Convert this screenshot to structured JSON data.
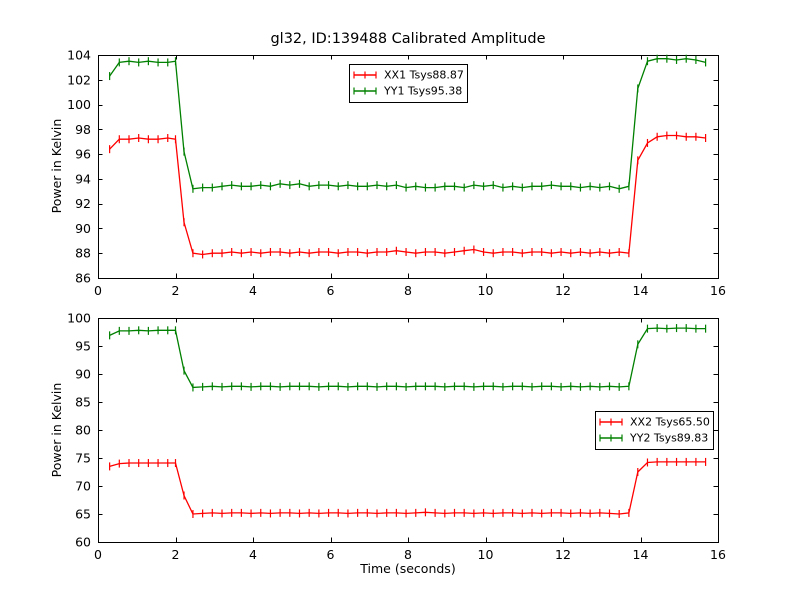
{
  "title": "gl32, ID:139488 Calibrated Amplitude",
  "colors": {
    "red_series": "#ff0000",
    "green_series": "#008000",
    "axis": "#000000",
    "background": "#ffffff"
  },
  "chart_data": [
    {
      "type": "line",
      "ylabel": "Power in Kelvin",
      "xlabel": "",
      "xlim": [
        0,
        16
      ],
      "ylim": [
        86,
        104
      ],
      "xticks": [
        0,
        2,
        4,
        6,
        8,
        10,
        12,
        14,
        16
      ],
      "yticks": [
        86,
        88,
        90,
        92,
        94,
        96,
        98,
        100,
        102,
        104
      ],
      "grid": false,
      "legend_position": "top-center",
      "marker": "errorbar-plus",
      "x": [
        0.3,
        0.55,
        0.8,
        1.05,
        1.3,
        1.55,
        1.8,
        2.0,
        2.22,
        2.45,
        2.7,
        2.95,
        3.2,
        3.45,
        3.7,
        3.95,
        4.2,
        4.45,
        4.7,
        4.95,
        5.2,
        5.45,
        5.7,
        5.95,
        6.2,
        6.45,
        6.7,
        6.95,
        7.2,
        7.45,
        7.7,
        7.95,
        8.2,
        8.45,
        8.7,
        8.95,
        9.2,
        9.45,
        9.7,
        9.95,
        10.2,
        10.45,
        10.7,
        10.95,
        11.2,
        11.45,
        11.7,
        11.95,
        12.2,
        12.45,
        12.7,
        12.95,
        13.2,
        13.45,
        13.7,
        13.93,
        14.18,
        14.43,
        14.68,
        14.93,
        15.18,
        15.43,
        15.68
      ],
      "series": [
        {
          "name": "XX1 Tsys88.87",
          "color": "#ff0000",
          "values": [
            96.4,
            97.2,
            97.2,
            97.3,
            97.2,
            97.2,
            97.3,
            97.2,
            90.5,
            88.0,
            87.9,
            88.0,
            88.0,
            88.1,
            88.0,
            88.1,
            88.0,
            88.1,
            88.1,
            88.0,
            88.1,
            88.0,
            88.1,
            88.1,
            88.0,
            88.1,
            88.1,
            88.0,
            88.1,
            88.1,
            88.2,
            88.1,
            88.0,
            88.1,
            88.1,
            88.0,
            88.1,
            88.2,
            88.3,
            88.1,
            88.0,
            88.1,
            88.1,
            88.0,
            88.1,
            88.1,
            88.0,
            88.1,
            88.0,
            88.1,
            88.0,
            88.1,
            88.0,
            88.1,
            88.0,
            95.5,
            96.9,
            97.4,
            97.5,
            97.5,
            97.4,
            97.4,
            97.3
          ]
        },
        {
          "name": "YY1 Tsys95.38",
          "color": "#008000",
          "values": [
            102.3,
            103.4,
            103.5,
            103.4,
            103.5,
            103.4,
            103.4,
            103.5,
            96.2,
            93.2,
            93.3,
            93.3,
            93.4,
            93.5,
            93.4,
            93.4,
            93.5,
            93.4,
            93.6,
            93.5,
            93.6,
            93.4,
            93.5,
            93.5,
            93.4,
            93.5,
            93.4,
            93.4,
            93.5,
            93.4,
            93.5,
            93.3,
            93.4,
            93.3,
            93.3,
            93.4,
            93.4,
            93.3,
            93.5,
            93.4,
            93.5,
            93.3,
            93.4,
            93.3,
            93.4,
            93.4,
            93.5,
            93.4,
            93.4,
            93.3,
            93.4,
            93.3,
            93.4,
            93.2,
            93.4,
            101.3,
            103.5,
            103.7,
            103.7,
            103.6,
            103.7,
            103.6,
            103.4
          ]
        }
      ]
    },
    {
      "type": "line",
      "ylabel": "Power in Kelvin",
      "xlabel": "Time (seconds)",
      "xlim": [
        0,
        16
      ],
      "ylim": [
        60,
        100
      ],
      "xticks": [
        0,
        2,
        4,
        6,
        8,
        10,
        12,
        14,
        16
      ],
      "yticks": [
        60,
        65,
        70,
        75,
        80,
        85,
        90,
        95,
        100
      ],
      "grid": false,
      "legend_position": "right-center",
      "marker": "errorbar-plus",
      "x": [
        0.3,
        0.55,
        0.8,
        1.05,
        1.3,
        1.55,
        1.8,
        2.0,
        2.22,
        2.45,
        2.7,
        2.95,
        3.2,
        3.45,
        3.7,
        3.95,
        4.2,
        4.45,
        4.7,
        4.95,
        5.2,
        5.45,
        5.7,
        5.95,
        6.2,
        6.45,
        6.7,
        6.95,
        7.2,
        7.45,
        7.7,
        7.95,
        8.2,
        8.45,
        8.7,
        8.95,
        9.2,
        9.45,
        9.7,
        9.95,
        10.2,
        10.45,
        10.7,
        10.95,
        11.2,
        11.45,
        11.7,
        11.95,
        12.2,
        12.45,
        12.7,
        12.95,
        13.2,
        13.45,
        13.7,
        13.93,
        14.18,
        14.43,
        14.68,
        14.93,
        15.18,
        15.43,
        15.68
      ],
      "series": [
        {
          "name": "XX2 Tsys65.50",
          "color": "#ff0000",
          "values": [
            73.5,
            74.0,
            74.1,
            74.1,
            74.1,
            74.1,
            74.1,
            74.1,
            68.3,
            65.0,
            65.1,
            65.2,
            65.1,
            65.2,
            65.2,
            65.1,
            65.2,
            65.1,
            65.2,
            65.2,
            65.1,
            65.2,
            65.1,
            65.2,
            65.2,
            65.1,
            65.2,
            65.2,
            65.1,
            65.2,
            65.2,
            65.1,
            65.2,
            65.3,
            65.2,
            65.1,
            65.2,
            65.2,
            65.1,
            65.2,
            65.1,
            65.2,
            65.2,
            65.1,
            65.2,
            65.1,
            65.2,
            65.2,
            65.1,
            65.2,
            65.1,
            65.2,
            65.1,
            65.0,
            65.2,
            72.5,
            74.2,
            74.3,
            74.3,
            74.3,
            74.3,
            74.3,
            74.3
          ]
        },
        {
          "name": "YY2 Tsys89.83",
          "color": "#008000",
          "values": [
            96.9,
            97.7,
            97.7,
            97.8,
            97.7,
            97.8,
            97.8,
            97.8,
            90.6,
            87.6,
            87.7,
            87.8,
            87.7,
            87.8,
            87.8,
            87.7,
            87.8,
            87.8,
            87.7,
            87.8,
            87.8,
            87.8,
            87.7,
            87.8,
            87.8,
            87.7,
            87.8,
            87.8,
            87.7,
            87.8,
            87.8,
            87.7,
            87.8,
            87.8,
            87.8,
            87.7,
            87.8,
            87.8,
            87.7,
            87.8,
            87.8,
            87.7,
            87.8,
            87.8,
            87.7,
            87.8,
            87.8,
            87.7,
            87.8,
            87.7,
            87.8,
            87.7,
            87.8,
            87.7,
            87.8,
            95.3,
            98.1,
            98.2,
            98.1,
            98.2,
            98.2,
            98.1,
            98.1
          ]
        }
      ]
    }
  ]
}
